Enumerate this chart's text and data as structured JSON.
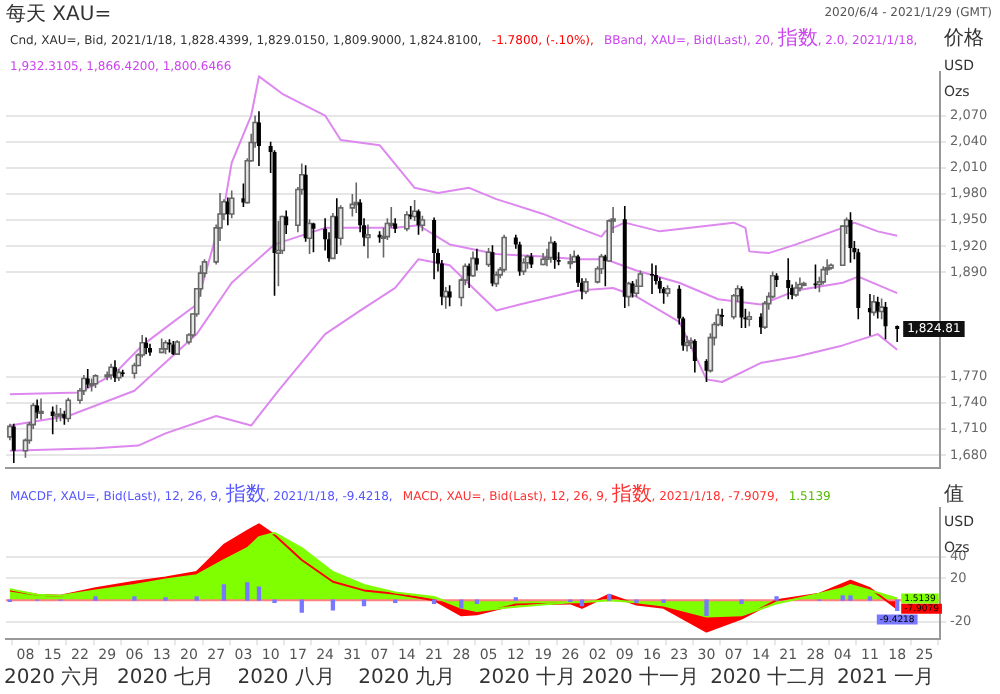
{
  "chart_data": [
    {
      "type": "candlestick",
      "title": "每天 XAU=",
      "subtitle": "2020/6/4 - 2021/1/29 (GMT)",
      "ylabel": "价格 USD Ozs",
      "annotations": [
        "Cnd, XAU=, Bid, 2021/1/18, 1,828.4399, 1,829.0150, 1,809.9000, 1,824.8100,",
        "-1.7800, (-.10%),",
        "BBand, XAU=, Bid(Last), 20, 指数, 2.0, 2021/1/18, 1,932.3105, 1,866.4200, 1,800.6466",
        {
          "text": "1,824.81",
          "x": "2021-01-18",
          "y": 1824.81
        }
      ],
      "x": [
        "2020-06-04",
        "2020-06-05",
        "2020-06-08",
        "2020-06-09",
        "2020-06-10",
        "2020-06-11",
        "2020-06-12",
        "2020-06-15",
        "2020-06-16",
        "2020-06-17",
        "2020-06-18",
        "2020-06-19",
        "2020-06-22",
        "2020-06-23",
        "2020-06-24",
        "2020-06-25",
        "2020-06-26",
        "2020-06-29",
        "2020-06-30",
        "2020-07-01",
        "2020-07-02",
        "2020-07-03",
        "2020-07-06",
        "2020-07-07",
        "2020-07-08",
        "2020-07-09",
        "2020-07-10",
        "2020-07-13",
        "2020-07-14",
        "2020-07-15",
        "2020-07-16",
        "2020-07-17",
        "2020-07-20",
        "2020-07-21",
        "2020-07-22",
        "2020-07-23",
        "2020-07-24",
        "2020-07-27",
        "2020-07-28",
        "2020-07-29",
        "2020-07-30",
        "2020-07-31",
        "2020-08-03",
        "2020-08-04",
        "2020-08-05",
        "2020-08-06",
        "2020-08-07",
        "2020-08-10",
        "2020-08-11",
        "2020-08-12",
        "2020-08-13",
        "2020-08-14",
        "2020-08-17",
        "2020-08-18",
        "2020-08-19",
        "2020-08-20",
        "2020-08-21",
        "2020-08-24",
        "2020-08-25",
        "2020-08-26",
        "2020-08-27",
        "2020-08-28",
        "2020-08-31",
        "2020-09-01",
        "2020-09-02",
        "2020-09-03",
        "2020-09-04",
        "2020-09-07",
        "2020-09-08",
        "2020-09-09",
        "2020-09-10",
        "2020-09-11",
        "2020-09-14",
        "2020-09-15",
        "2020-09-16",
        "2020-09-17",
        "2020-09-18",
        "2020-09-21",
        "2020-09-22",
        "2020-09-23",
        "2020-09-24",
        "2020-09-25",
        "2020-09-28",
        "2020-09-29",
        "2020-09-30",
        "2020-10-01",
        "2020-10-02",
        "2020-10-05",
        "2020-10-06",
        "2020-10-07",
        "2020-10-08",
        "2020-10-09",
        "2020-10-12",
        "2020-10-13",
        "2020-10-14",
        "2020-10-15",
        "2020-10-16",
        "2020-10-19",
        "2020-10-20",
        "2020-10-21",
        "2020-10-22",
        "2020-10-23",
        "2020-10-26",
        "2020-10-27",
        "2020-10-28",
        "2020-10-29",
        "2020-10-30",
        "2020-11-02",
        "2020-11-03",
        "2020-11-04",
        "2020-11-05",
        "2020-11-06",
        "2020-11-09",
        "2020-11-10",
        "2020-11-11",
        "2020-11-12",
        "2020-11-13",
        "2020-11-16",
        "2020-11-17",
        "2020-11-18",
        "2020-11-19",
        "2020-11-20",
        "2020-11-23",
        "2020-11-24",
        "2020-11-25",
        "2020-11-26",
        "2020-11-27",
        "2020-11-30",
        "2020-12-01",
        "2020-12-02",
        "2020-12-03",
        "2020-12-04",
        "2020-12-07",
        "2020-12-08",
        "2020-12-09",
        "2020-12-10",
        "2020-12-11",
        "2020-12-14",
        "2020-12-15",
        "2020-12-16",
        "2020-12-17",
        "2020-12-18",
        "2020-12-21",
        "2020-12-22",
        "2020-12-23",
        "2020-12-24",
        "2020-12-25",
        "2020-12-28",
        "2020-12-29",
        "2020-12-30",
        "2020-12-31",
        "2021-01-01",
        "2021-01-04",
        "2021-01-05",
        "2021-01-06",
        "2021-01-07",
        "2021-01-08",
        "2021-01-11",
        "2021-01-12",
        "2021-01-13",
        "2021-01-14",
        "2021-01-15",
        "2021-01-18"
      ],
      "ohlc": [
        [
          1701,
          1716,
          1697,
          1713
        ],
        [
          1713,
          1716,
          1671,
          1685
        ],
        [
          1685,
          1699,
          1677,
          1697
        ],
        [
          1697,
          1718,
          1693,
          1715
        ],
        [
          1715,
          1740,
          1710,
          1737
        ],
        [
          1737,
          1744,
          1722,
          1729
        ],
        [
          1729,
          1745,
          1721,
          1730
        ],
        [
          1730,
          1736,
          1704,
          1725
        ],
        [
          1725,
          1738,
          1718,
          1727
        ],
        [
          1727,
          1734,
          1719,
          1727
        ],
        [
          1727,
          1731,
          1715,
          1722
        ],
        [
          1722,
          1746,
          1718,
          1743
        ],
        [
          1743,
          1757,
          1739,
          1754
        ],
        [
          1754,
          1772,
          1749,
          1768
        ],
        [
          1768,
          1779,
          1757,
          1761
        ],
        [
          1761,
          1768,
          1753,
          1762
        ],
        [
          1762,
          1773,
          1757,
          1771
        ],
        [
          1771,
          1776,
          1766,
          1772
        ],
        [
          1772,
          1785,
          1767,
          1781
        ],
        [
          1781,
          1789,
          1764,
          1769
        ],
        [
          1769,
          1779,
          1765,
          1775
        ],
        [
          1775,
          1778,
          1770,
          1774
        ],
        [
          1774,
          1786,
          1768,
          1783
        ],
        [
          1783,
          1797,
          1782,
          1795
        ],
        [
          1795,
          1818,
          1792,
          1809
        ],
        [
          1809,
          1815,
          1796,
          1803
        ],
        [
          1803,
          1808,
          1794,
          1798
        ],
        [
          1798,
          1814,
          1797,
          1802
        ],
        [
          1802,
          1812,
          1796,
          1809
        ],
        [
          1809,
          1813,
          1798,
          1807
        ],
        [
          1807,
          1811,
          1795,
          1796
        ],
        [
          1796,
          1812,
          1795,
          1810
        ],
        [
          1810,
          1820,
          1807,
          1818
        ],
        [
          1818,
          1843,
          1815,
          1842
        ],
        [
          1842,
          1872,
          1839,
          1871
        ],
        [
          1871,
          1898,
          1862,
          1889
        ],
        [
          1889,
          1905,
          1884,
          1902
        ],
        [
          1902,
          1945,
          1899,
          1941
        ],
        [
          1941,
          1981,
          1926,
          1957
        ],
        [
          1957,
          1974,
          1950,
          1971
        ],
        [
          1971,
          1976,
          1944,
          1957
        ],
        [
          1957,
          1984,
          1952,
          1975
        ],
        [
          1975,
          1992,
          1965,
          1970
        ],
        [
          1970,
          2021,
          1969,
          2018
        ],
        [
          2018,
          2049,
          2017,
          2039
        ],
        [
          2039,
          2070,
          2033,
          2062
        ],
        [
          2062,
          2075,
          2012,
          2035
        ],
        [
          2035,
          2040,
          2004,
          2028
        ],
        [
          2028,
          2030,
          1863,
          1912
        ],
        [
          1912,
          1949,
          1874,
          1915
        ],
        [
          1915,
          1955,
          1911,
          1954
        ],
        [
          1954,
          1961,
          1934,
          1944
        ],
        [
          1944,
          1988,
          1936,
          1985
        ],
        [
          1985,
          2015,
          1979,
          2002
        ],
        [
          2002,
          2013,
          1925,
          1929
        ],
        [
          1929,
          1951,
          1911,
          1946
        ],
        [
          1946,
          1947,
          1913,
          1940
        ],
        [
          1940,
          1952,
          1915,
          1928
        ],
        [
          1928,
          1936,
          1902,
          1906
        ],
        [
          1906,
          1958,
          1906,
          1954
        ],
        [
          1954,
          1975,
          1911,
          1929
        ],
        [
          1929,
          1967,
          1921,
          1964
        ],
        [
          1964,
          1980,
          1954,
          1968
        ],
        [
          1968,
          1993,
          1958,
          1970
        ],
        [
          1970,
          1974,
          1936,
          1944
        ],
        [
          1944,
          1952,
          1920,
          1930
        ],
        [
          1930,
          1945,
          1906,
          1933
        ],
        [
          1933,
          1937,
          1924,
          1930
        ],
        [
          1930,
          1941,
          1907,
          1931
        ],
        [
          1931,
          1952,
          1927,
          1946
        ],
        [
          1946,
          1965,
          1941,
          1946
        ],
        [
          1946,
          1952,
          1935,
          1940
        ],
        [
          1940,
          1960,
          1937,
          1956
        ],
        [
          1956,
          1966,
          1951,
          1954
        ],
        [
          1954,
          1973,
          1949,
          1960
        ],
        [
          1960,
          1962,
          1933,
          1944
        ],
        [
          1944,
          1955,
          1937,
          1950
        ],
        [
          1950,
          1953,
          1882,
          1912
        ],
        [
          1912,
          1917,
          1891,
          1900
        ],
        [
          1900,
          1904,
          1852,
          1862
        ],
        [
          1862,
          1873,
          1848,
          1868
        ],
        [
          1868,
          1875,
          1851,
          1861
        ],
        [
          1861,
          1883,
          1851,
          1881
        ],
        [
          1881,
          1900,
          1875,
          1897
        ],
        [
          1897,
          1900,
          1872,
          1886
        ],
        [
          1886,
          1914,
          1885,
          1906
        ],
        [
          1906,
          1917,
          1892,
          1899
        ],
        [
          1899,
          1918,
          1896,
          1913
        ],
        [
          1913,
          1921,
          1874,
          1877
        ],
        [
          1877,
          1891,
          1873,
          1887
        ],
        [
          1887,
          1896,
          1883,
          1893
        ],
        [
          1893,
          1933,
          1890,
          1930
        ],
        [
          1930,
          1933,
          1917,
          1922
        ],
        [
          1922,
          1925,
          1886,
          1891
        ],
        [
          1891,
          1906,
          1887,
          1901
        ],
        [
          1901,
          1910,
          1894,
          1908
        ],
        [
          1908,
          1912,
          1895,
          1899
        ],
        [
          1899,
          1912,
          1898,
          1905
        ],
        [
          1905,
          1917,
          1897,
          1907
        ],
        [
          1907,
          1931,
          1901,
          1924
        ],
        [
          1924,
          1926,
          1894,
          1904
        ],
        [
          1904,
          1913,
          1898,
          1902
        ],
        [
          1902,
          1911,
          1894,
          1902
        ],
        [
          1902,
          1915,
          1901,
          1908
        ],
        [
          1908,
          1910,
          1873,
          1878
        ],
        [
          1878,
          1883,
          1859,
          1868
        ],
        [
          1868,
          1883,
          1865,
          1879
        ],
        [
          1879,
          1897,
          1877,
          1894
        ],
        [
          1894,
          1911,
          1888,
          1908
        ],
        [
          1908,
          1910,
          1874,
          1903
        ],
        [
          1903,
          1951,
          1902,
          1949
        ],
        [
          1949,
          1965,
          1935,
          1951
        ],
        [
          1951,
          1966,
          1849,
          1862
        ],
        [
          1862,
          1879,
          1851,
          1877
        ],
        [
          1877,
          1880,
          1861,
          1866
        ],
        [
          1866,
          1882,
          1862,
          1874
        ],
        [
          1874,
          1892,
          1873,
          1888
        ],
        [
          1888,
          1900,
          1865,
          1887
        ],
        [
          1887,
          1898,
          1876,
          1880
        ],
        [
          1880,
          1884,
          1866,
          1871
        ],
        [
          1871,
          1873,
          1854,
          1866
        ],
        [
          1866,
          1875,
          1862,
          1871
        ],
        [
          1871,
          1875,
          1830,
          1837
        ],
        [
          1837,
          1839,
          1800,
          1806
        ],
        [
          1806,
          1817,
          1799,
          1809
        ],
        [
          1809,
          1815,
          1802,
          1811
        ],
        [
          1811,
          1813,
          1775,
          1788
        ],
        [
          1788,
          1790,
          1764,
          1777
        ],
        [
          1777,
          1820,
          1775,
          1815
        ],
        [
          1815,
          1833,
          1806,
          1830
        ],
        [
          1830,
          1848,
          1828,
          1841
        ],
        [
          1841,
          1848,
          1828,
          1839
        ],
        [
          1839,
          1865,
          1836,
          1863
        ],
        [
          1863,
          1875,
          1856,
          1871
        ],
        [
          1871,
          1874,
          1826,
          1838
        ],
        [
          1838,
          1848,
          1826,
          1836
        ],
        [
          1836,
          1845,
          1828,
          1839
        ],
        [
          1839,
          1843,
          1819,
          1827
        ],
        [
          1827,
          1857,
          1825,
          1854
        ],
        [
          1854,
          1867,
          1847,
          1862
        ],
        [
          1862,
          1891,
          1860,
          1886
        ],
        [
          1886,
          1889,
          1873,
          1881
        ],
        [
          1881,
          1906,
          1859,
          1872
        ],
        [
          1872,
          1876,
          1859,
          1864
        ],
        [
          1864,
          1879,
          1862,
          1872
        ],
        [
          1872,
          1884,
          1868,
          1876
        ],
        [
          1876,
          1879,
          1874,
          1877
        ],
        [
          1877,
          1899,
          1871,
          1876
        ],
        [
          1876,
          1885,
          1867,
          1879
        ],
        [
          1879,
          1897,
          1876,
          1893
        ],
        [
          1893,
          1905,
          1887,
          1895
        ],
        [
          1895,
          1900,
          1893,
          1898
        ],
        [
          1898,
          1944,
          1898,
          1943
        ],
        [
          1943,
          1953,
          1934,
          1950
        ],
        [
          1950,
          1959,
          1901,
          1918
        ],
        [
          1918,
          1926,
          1905,
          1913
        ],
        [
          1913,
          1917,
          1836,
          1849
        ],
        [
          1849,
          1865,
          1817,
          1844
        ],
        [
          1844,
          1864,
          1840,
          1856
        ],
        [
          1856,
          1862,
          1837,
          1845
        ],
        [
          1845,
          1860,
          1836,
          1850
        ],
        [
          1850,
          1856,
          1813,
          1828
        ],
        [
          1828.4399,
          1829.015,
          1809.9,
          1824.81
        ]
      ],
      "series": [
        {
          "type": "line",
          "color": "#dd88ee",
          "x": [
            "2020-06-04",
            "2020-06-22",
            "2020-07-01",
            "2020-07-08",
            "2020-07-16",
            "2020-07-22",
            "2020-07-29",
            "2020-07-31",
            "2020-08-05",
            "2020-08-07",
            "2020-08-13",
            "2020-08-24",
            "2020-08-28",
            "2020-09-07",
            "2020-09-16",
            "2020-09-22",
            "2020-09-30",
            "2020-10-07",
            "2020-10-19",
            "2020-10-28",
            "2020-11-03",
            "2020-11-04",
            "2020-11-09",
            "2020-11-18",
            "2020-12-07",
            "2020-12-10",
            "2020-12-11",
            "2020-12-16",
            "2020-12-23",
            "2021-01-04",
            "2021-01-07",
            "2021-01-13",
            "2021-01-18"
          ],
          "values": [
            1750,
            1752,
            1774,
            1806,
            1833,
            1853,
            1964,
            2016,
            2070,
            2115,
            2095,
            2070,
            2042,
            2036,
            1987,
            1981,
            1987,
            1974,
            1957,
            1941,
            1931,
            1937,
            1947,
            1937,
            1947,
            1941,
            1914,
            1912,
            1922,
            1941,
            1947,
            1937,
            1932
          ]
        },
        {
          "type": "line",
          "color": "#dd88ee",
          "x": [
            "2020-06-04",
            "2020-06-19",
            "2020-07-06",
            "2020-07-22",
            "2020-07-31",
            "2020-08-11",
            "2020-08-24",
            "2020-09-02",
            "2020-09-11",
            "2020-09-17",
            "2020-09-25",
            "2020-10-07",
            "2020-10-19",
            "2020-10-28",
            "2020-11-04",
            "2020-11-12",
            "2020-11-23",
            "2020-12-03",
            "2020-12-14",
            "2020-12-23",
            "2021-01-04",
            "2021-01-08",
            "2021-01-18"
          ],
          "values": [
            1714,
            1725,
            1754,
            1819,
            1878,
            1922,
            1941,
            1941,
            1941,
            1944,
            1922,
            1911,
            1908,
            1905,
            1905,
            1892,
            1878,
            1859,
            1853,
            1869,
            1878,
            1885,
            1866
          ]
        },
        {
          "type": "line",
          "color": "#dd88ee",
          "x": [
            "2020-06-04",
            "2020-06-26",
            "2020-07-07",
            "2020-07-14",
            "2020-07-27",
            "2020-08-05",
            "2020-08-12",
            "2020-08-24",
            "2020-09-02",
            "2020-09-11",
            "2020-09-17",
            "2020-09-25",
            "2020-10-07",
            "2020-10-13",
            "2020-10-28",
            "2020-11-06",
            "2020-11-12",
            "2020-11-23",
            "2020-11-30",
            "2020-12-04",
            "2020-12-14",
            "2020-12-23",
            "2021-01-04",
            "2021-01-13",
            "2021-01-18"
          ],
          "values": [
            1685,
            1688,
            1691,
            1705,
            1725,
            1714,
            1754,
            1819,
            1846,
            1872,
            1905,
            1898,
            1846,
            1853,
            1869,
            1872,
            1862,
            1833,
            1767,
            1764,
            1786,
            1793,
            1806,
            1819,
            1801
          ]
        }
      ],
      "xlim": [
        "2020-06-03",
        "2021-01-29"
      ],
      "ylim": [
        1665,
        2120
      ],
      "yticks": [
        {
          "value": 1680,
          "label": "1,680"
        },
        {
          "value": 1710,
          "label": "1,710"
        },
        {
          "value": 1740,
          "label": "1,740"
        },
        {
          "value": 1770,
          "label": "1,770"
        },
        {
          "value": 1890,
          "label": "1,890"
        },
        {
          "value": 1920,
          "label": "1,920"
        },
        {
          "value": 1950,
          "label": "1,950"
        },
        {
          "value": 1980,
          "label": "1,980"
        },
        {
          "value": 2010,
          "label": "2,010"
        },
        {
          "value": 2040,
          "label": "2,040"
        },
        {
          "value": 2070,
          "label": "2,070"
        }
      ],
      "tick_labels": "y",
      "grid": "y"
    },
    {
      "type": "area",
      "ylabel": "值 USD Ozs",
      "annotations": [
        "MACDF, XAU=, Bid(Last), 12, 26, 9, 指数, 2021/1/18, -9.4218,",
        "MACD, XAU=, Bid(Last), 12, 26, 9, 指数, 2021/1/18, -7.9079,",
        "1.5139"
      ],
      "x": [
        "2020-06-04",
        "2020-06-11",
        "2020-06-17",
        "2020-06-26",
        "2020-07-06",
        "2020-07-14",
        "2020-07-22",
        "2020-07-29",
        "2020-08-04",
        "2020-08-07",
        "2020-08-11",
        "2020-08-18",
        "2020-08-26",
        "2020-09-03",
        "2020-09-11",
        "2020-09-21",
        "2020-09-28",
        "2020-10-02",
        "2020-10-12",
        "2020-10-26",
        "2020-10-29",
        "2020-11-05",
        "2020-11-12",
        "2020-11-19",
        "2020-11-30",
        "2020-12-09",
        "2020-12-18",
        "2020-12-29",
        "2021-01-04",
        "2021-01-06",
        "2021-01-11",
        "2021-01-18"
      ],
      "series": [
        {
          "color": "#80ff00",
          "values": [
            10,
            5,
            4,
            9,
            14,
            19,
            23,
            37,
            48,
            58,
            62,
            48,
            26,
            14,
            7,
            3,
            -7,
            -10,
            -6,
            -2,
            -2,
            0,
            -2,
            -5,
            -15,
            -14,
            -3,
            6,
            11,
            14,
            9,
            1.5139
          ],
          "value_labels": [
            null,
            null,
            null,
            null,
            null,
            null,
            null,
            null,
            null,
            null,
            null,
            null,
            null,
            null,
            null,
            null,
            null,
            null,
            null,
            null,
            null,
            null,
            null,
            null,
            null,
            null,
            null,
            null,
            null,
            null,
            null,
            "1.5139"
          ]
        },
        {
          "color": "#ff0000",
          "values": [
            9,
            5,
            4,
            11,
            17,
            21,
            26,
            51,
            64,
            70,
            60,
            37,
            17,
            9,
            6,
            0,
            -14,
            -13,
            -4,
            -3,
            -7,
            5,
            -4,
            -7,
            -29,
            -17,
            0,
            6,
            15,
            18,
            11,
            -7.9079
          ],
          "value_labels": [
            null,
            null,
            null,
            null,
            null,
            null,
            null,
            null,
            null,
            null,
            null,
            null,
            null,
            null,
            null,
            null,
            null,
            null,
            null,
            null,
            null,
            null,
            null,
            null,
            null,
            null,
            null,
            null,
            null,
            null,
            null,
            "-7.9079"
          ]
        },
        {
          "type": "bar",
          "color": "#7777ff",
          "values": [
            -1,
            0,
            0,
            3,
            3,
            2,
            3,
            14,
            16,
            12,
            -2,
            -11,
            -9,
            -5,
            -2,
            -3,
            -7,
            -3,
            2,
            -1,
            -5,
            5,
            -2,
            -2,
            -14,
            -3,
            3,
            0,
            4,
            4,
            3,
            -9.4218
          ],
          "value_labels": [
            null,
            null,
            null,
            null,
            null,
            null,
            null,
            null,
            null,
            null,
            null,
            null,
            null,
            null,
            null,
            null,
            null,
            null,
            null,
            null,
            null,
            null,
            null,
            null,
            null,
            null,
            null,
            null,
            null,
            null,
            null,
            "-9.4218"
          ]
        }
      ],
      "ref_lines": [
        {
          "axis": "y",
          "value": 0,
          "color": "#ff8080"
        }
      ],
      "xlim": [
        "2020-06-03",
        "2021-01-29"
      ],
      "xticks": [
        {
          "value": "2020-06-08",
          "label": "08"
        },
        {
          "value": "2020-06-15",
          "label": "15"
        },
        {
          "value": "2020-06-22",
          "label": "22"
        },
        {
          "value": "2020-06-29",
          "label": "29"
        },
        {
          "value": "2020-07-06",
          "label": "06"
        },
        {
          "value": "2020-07-13",
          "label": "13"
        },
        {
          "value": "2020-07-20",
          "label": "20"
        },
        {
          "value": "2020-07-27",
          "label": "27"
        },
        {
          "value": "2020-08-03",
          "label": "03"
        },
        {
          "value": "2020-08-10",
          "label": "10"
        },
        {
          "value": "2020-08-17",
          "label": "17"
        },
        {
          "value": "2020-08-24",
          "label": "24"
        },
        {
          "value": "2020-08-31",
          "label": "31"
        },
        {
          "value": "2020-09-07",
          "label": "07"
        },
        {
          "value": "2020-09-14",
          "label": "14"
        },
        {
          "value": "2020-09-21",
          "label": "21"
        },
        {
          "value": "2020-09-28",
          "label": "28"
        },
        {
          "value": "2020-10-05",
          "label": "05"
        },
        {
          "value": "2020-10-12",
          "label": "12"
        },
        {
          "value": "2020-10-19",
          "label": "19"
        },
        {
          "value": "2020-10-26",
          "label": "26"
        },
        {
          "value": "2020-11-02",
          "label": "02"
        },
        {
          "value": "2020-11-09",
          "label": "09"
        },
        {
          "value": "2020-11-16",
          "label": "16"
        },
        {
          "value": "2020-11-23",
          "label": "23"
        },
        {
          "value": "2020-11-30",
          "label": "30"
        },
        {
          "value": "2020-12-07",
          "label": "07"
        },
        {
          "value": "2020-12-14",
          "label": "14"
        },
        {
          "value": "2020-12-21",
          "label": "21"
        },
        {
          "value": "2020-12-28",
          "label": "28"
        },
        {
          "value": "2021-01-04",
          "label": "04"
        },
        {
          "value": "2021-01-11",
          "label": "11"
        },
        {
          "value": "2021-01-18",
          "label": "18"
        },
        {
          "value": "2021-01-25",
          "label": "25"
        }
      ],
      "x2lim": [
        "2020-06-03",
        "2021-01-29"
      ],
      "x2ticks": [
        {
          "value": "2020-06-15",
          "label": "2020 六月"
        },
        {
          "value": "2020-07-14",
          "label": "2020 七月"
        },
        {
          "value": "2020-08-14",
          "label": "2020 八月"
        },
        {
          "value": "2020-09-14",
          "label": "2020 九月"
        },
        {
          "value": "2020-10-15",
          "label": "2020 十月"
        },
        {
          "value": "2020-11-13",
          "label": "2020 十一月"
        },
        {
          "value": "2020-12-16",
          "label": "2020 十二月"
        },
        {
          "value": "2021-01-15",
          "label": "2021 一月"
        }
      ],
      "ylim": [
        -36,
        85
      ],
      "yticks": [
        40,
        20,
        -20
      ],
      "grid": "y"
    }
  ]
}
